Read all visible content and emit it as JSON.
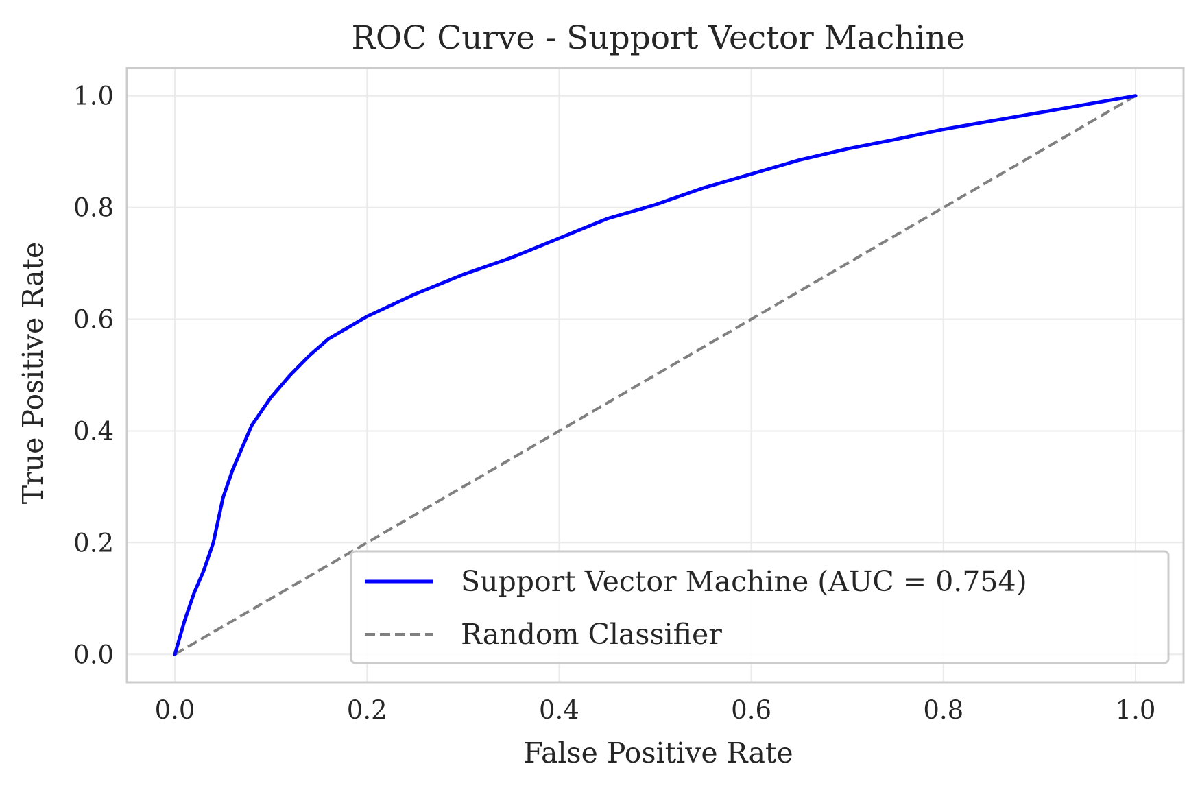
{
  "chart_data": {
    "type": "line",
    "title": "ROC Curve - Support Vector Machine",
    "xlabel": "False Positive Rate",
    "ylabel": "True Positive Rate",
    "xlim": [
      -0.05,
      1.05
    ],
    "ylim": [
      -0.05,
      1.05
    ],
    "x_ticks": [
      "0.0",
      "0.2",
      "0.4",
      "0.6",
      "0.8",
      "1.0"
    ],
    "y_ticks": [
      "0.0",
      "0.2",
      "0.4",
      "0.6",
      "0.8",
      "1.0"
    ],
    "grid": true,
    "legend_position": "bottom-right",
    "series": [
      {
        "name": "Support Vector Machine (AUC = 0.754)",
        "color": "#0000ff",
        "style": "solid",
        "x": [
          0.0,
          0.005,
          0.01,
          0.02,
          0.03,
          0.04,
          0.05,
          0.06,
          0.07,
          0.08,
          0.1,
          0.12,
          0.14,
          0.16,
          0.18,
          0.2,
          0.25,
          0.3,
          0.35,
          0.4,
          0.45,
          0.5,
          0.55,
          0.6,
          0.65,
          0.7,
          0.75,
          0.8,
          0.85,
          0.9,
          0.95,
          1.0
        ],
        "y": [
          0.0,
          0.03,
          0.06,
          0.11,
          0.15,
          0.2,
          0.28,
          0.33,
          0.37,
          0.41,
          0.46,
          0.5,
          0.535,
          0.565,
          0.585,
          0.605,
          0.645,
          0.68,
          0.71,
          0.745,
          0.78,
          0.805,
          0.835,
          0.86,
          0.885,
          0.905,
          0.922,
          0.94,
          0.955,
          0.97,
          0.985,
          1.0
        ]
      },
      {
        "name": "Random Classifier",
        "color": "#808080",
        "style": "dashed",
        "x": [
          0.0,
          1.0
        ],
        "y": [
          0.0,
          1.0
        ]
      }
    ]
  }
}
